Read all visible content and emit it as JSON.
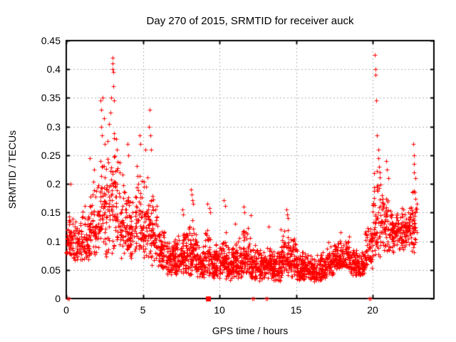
{
  "chart_data": {
    "type": "scatter",
    "title": "Day 270 of 2015, SRMTID for receiver auck",
    "xlabel": "GPS time / hours",
    "ylabel": "SRMTID / TECUs",
    "xlim": [
      0,
      24
    ],
    "ylim": [
      0,
      0.45
    ],
    "xticks": {
      "values": [
        0,
        5,
        10,
        15,
        20
      ],
      "labels": [
        "0",
        "5",
        "10",
        "15",
        "20"
      ]
    },
    "yticks": {
      "values": [
        0,
        0.05,
        0.1,
        0.15,
        0.2,
        0.25,
        0.3,
        0.35,
        0.4,
        0.45
      ],
      "labels": [
        "0",
        "0.05",
        "0.1",
        "0.15",
        "0.2",
        "0.25",
        "0.3",
        "0.35",
        "0.4",
        "0.45"
      ]
    },
    "grid": true,
    "legend": "none",
    "background_color": "#ffffff",
    "border_color": "#000000",
    "grid_color": "#b0b0b0",
    "marker": {
      "shape": "plus",
      "color": "#ff0000",
      "size": 7
    },
    "scatter_bins_comment": "dense +-marker cloud summarized as [hour_start, hour_end, n_points, band_low, band_high] in SRMTID/TECUs",
    "scatter_bins": [
      [
        0.0,
        0.5,
        55,
        0.07,
        0.16
      ],
      [
        0.5,
        1.0,
        55,
        0.065,
        0.15
      ],
      [
        1.0,
        1.5,
        55,
        0.06,
        0.175
      ],
      [
        1.5,
        2.0,
        55,
        0.07,
        0.21
      ],
      [
        2.0,
        2.5,
        55,
        0.075,
        0.26
      ],
      [
        2.5,
        3.0,
        55,
        0.07,
        0.3
      ],
      [
        3.0,
        3.5,
        55,
        0.08,
        0.3
      ],
      [
        3.5,
        4.0,
        55,
        0.07,
        0.22
      ],
      [
        4.0,
        4.5,
        55,
        0.07,
        0.2
      ],
      [
        4.5,
        5.0,
        55,
        0.075,
        0.25
      ],
      [
        5.0,
        5.5,
        55,
        0.065,
        0.23
      ],
      [
        5.5,
        6.0,
        55,
        0.055,
        0.2
      ],
      [
        6.0,
        6.5,
        62,
        0.05,
        0.13
      ],
      [
        6.5,
        7.0,
        62,
        0.04,
        0.11
      ],
      [
        7.0,
        7.5,
        65,
        0.04,
        0.12
      ],
      [
        7.5,
        8.0,
        65,
        0.042,
        0.135
      ],
      [
        8.0,
        8.5,
        65,
        0.04,
        0.14
      ],
      [
        8.5,
        9.0,
        65,
        0.035,
        0.1
      ],
      [
        9.0,
        9.5,
        52,
        0.04,
        0.13
      ],
      [
        9.5,
        10.0,
        65,
        0.032,
        0.1
      ],
      [
        10.0,
        10.5,
        65,
        0.035,
        0.12
      ],
      [
        10.5,
        11.0,
        65,
        0.032,
        0.1
      ],
      [
        11.0,
        11.5,
        65,
        0.035,
        0.11
      ],
      [
        11.5,
        12.0,
        65,
        0.04,
        0.13
      ],
      [
        12.0,
        12.5,
        65,
        0.032,
        0.105
      ],
      [
        12.5,
        13.0,
        65,
        0.03,
        0.09
      ],
      [
        13.0,
        13.5,
        65,
        0.035,
        0.1
      ],
      [
        13.5,
        14.0,
        65,
        0.03,
        0.09
      ],
      [
        14.0,
        14.5,
        65,
        0.04,
        0.125
      ],
      [
        14.5,
        15.0,
        65,
        0.038,
        0.115
      ],
      [
        15.0,
        15.5,
        65,
        0.03,
        0.09
      ],
      [
        15.5,
        16.0,
        65,
        0.03,
        0.085
      ],
      [
        16.0,
        16.5,
        65,
        0.028,
        0.08
      ],
      [
        16.5,
        17.0,
        65,
        0.03,
        0.09
      ],
      [
        17.0,
        17.5,
        65,
        0.04,
        0.1
      ],
      [
        17.5,
        18.0,
        65,
        0.05,
        0.108
      ],
      [
        18.0,
        18.5,
        65,
        0.05,
        0.11
      ],
      [
        18.5,
        19.0,
        65,
        0.04,
        0.095
      ],
      [
        19.0,
        19.5,
        62,
        0.04,
        0.088
      ],
      [
        19.5,
        20.0,
        58,
        0.05,
        0.135
      ],
      [
        20.0,
        20.5,
        58,
        0.07,
        0.225
      ],
      [
        20.5,
        21.0,
        58,
        0.08,
        0.205
      ],
      [
        21.0,
        21.5,
        55,
        0.08,
        0.175
      ],
      [
        21.5,
        22.0,
        55,
        0.085,
        0.165
      ],
      [
        22.0,
        22.5,
        55,
        0.09,
        0.175
      ],
      [
        22.5,
        22.9,
        45,
        0.075,
        0.205
      ]
    ],
    "outliers_comment": "distinct high spike points [hour, SRMTID]",
    "outliers": [
      [
        0.3,
        0.2
      ],
      [
        1.55,
        0.245
      ],
      [
        1.8,
        0.225
      ],
      [
        2.25,
        0.345
      ],
      [
        2.27,
        0.33
      ],
      [
        2.3,
        0.3
      ],
      [
        2.32,
        0.285
      ],
      [
        2.38,
        0.35
      ],
      [
        2.45,
        0.315
      ],
      [
        2.5,
        0.27
      ],
      [
        2.8,
        0.305
      ],
      [
        2.9,
        0.325
      ],
      [
        2.95,
        0.35
      ],
      [
        3.0,
        0.42
      ],
      [
        3.0,
        0.41
      ],
      [
        3.02,
        0.4
      ],
      [
        3.05,
        0.395
      ],
      [
        3.05,
        0.37
      ],
      [
        3.1,
        0.345
      ],
      [
        3.3,
        0.26
      ],
      [
        4.0,
        0.27
      ],
      [
        4.05,
        0.25
      ],
      [
        4.8,
        0.285
      ],
      [
        4.85,
        0.27
      ],
      [
        5.15,
        0.26
      ],
      [
        5.4,
        0.3
      ],
      [
        5.45,
        0.33
      ],
      [
        5.5,
        0.285
      ],
      [
        5.55,
        0.26
      ],
      [
        7.6,
        0.155
      ],
      [
        7.65,
        0.147
      ],
      [
        8.15,
        0.19
      ],
      [
        8.2,
        0.182
      ],
      [
        8.22,
        0.172
      ],
      [
        8.3,
        0.165
      ],
      [
        9.2,
        0.165
      ],
      [
        9.35,
        0.158
      ],
      [
        9.4,
        0.15
      ],
      [
        10.3,
        0.172
      ],
      [
        10.35,
        0.162
      ],
      [
        11.0,
        0.13
      ],
      [
        11.6,
        0.16
      ],
      [
        11.65,
        0.15
      ],
      [
        12.05,
        0.145
      ],
      [
        13.2,
        0.125
      ],
      [
        14.35,
        0.155
      ],
      [
        14.4,
        0.147
      ],
      [
        14.45,
        0.14
      ],
      [
        17.9,
        0.115
      ],
      [
        20.15,
        0.425
      ],
      [
        20.17,
        0.4
      ],
      [
        20.2,
        0.39
      ],
      [
        20.22,
        0.345
      ],
      [
        20.28,
        0.285
      ],
      [
        20.35,
        0.26
      ],
      [
        20.37,
        0.245
      ],
      [
        20.4,
        0.23
      ],
      [
        20.45,
        0.22
      ],
      [
        20.9,
        0.24
      ],
      [
        20.95,
        0.225
      ],
      [
        21.0,
        0.21
      ],
      [
        22.65,
        0.27
      ],
      [
        22.68,
        0.25
      ],
      [
        22.7,
        0.235
      ],
      [
        22.72,
        0.22
      ],
      [
        22.78,
        0.21
      ]
    ],
    "axis_markers": {
      "comment": "markers sitting on the y=0 baseline",
      "filled_squares": [
        9.27
      ],
      "plus_points": [
        0.1,
        0.2,
        12.12,
        12.22,
        13.02,
        13.12,
        19.78,
        19.88
      ]
    }
  }
}
